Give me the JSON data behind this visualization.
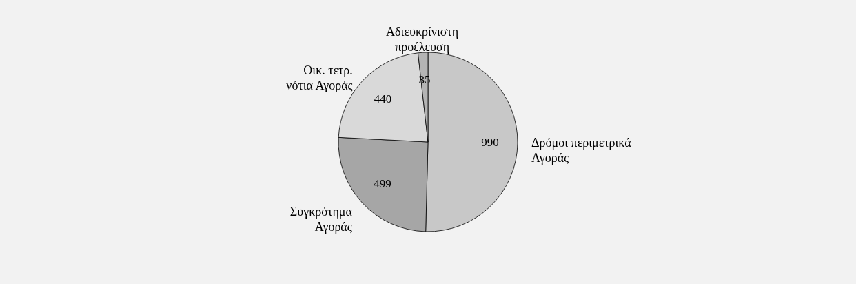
{
  "chart_data": {
    "type": "pie",
    "categories": [
      "Δρόμοι περιμετρικά\nΑγοράς",
      "Συγκρότημα\nΑγοράς",
      "Οικ. τετρ.\nνότια Αγοράς",
      "Αδιευκρίνιστη\nπροέλευση"
    ],
    "values": [
      990,
      499,
      440,
      35
    ],
    "colors": [
      "#c8c8c8",
      "#a6a6a6",
      "#d9d9d9",
      "#b4b4b4"
    ],
    "data_labels": true,
    "legend": false
  }
}
